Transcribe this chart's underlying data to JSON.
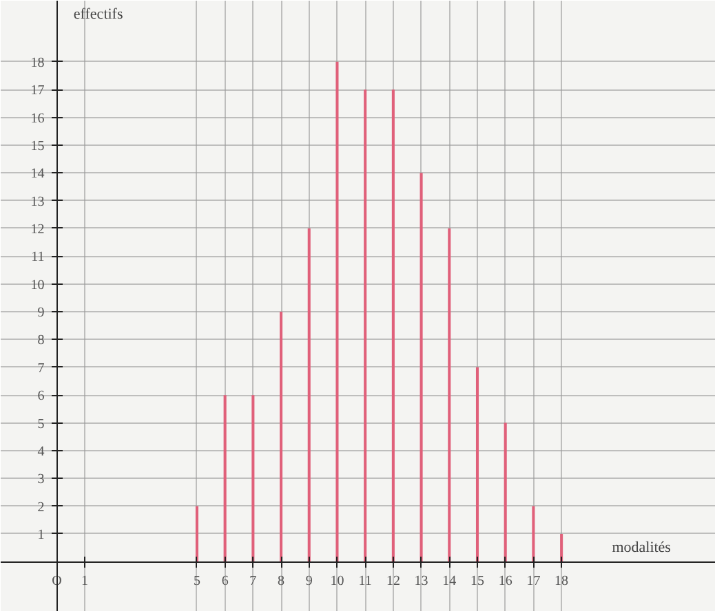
{
  "chart_data": {
    "type": "bar",
    "xlabel": "modalités",
    "ylabel": "effectifs",
    "x": [
      5,
      6,
      7,
      8,
      9,
      10,
      11,
      12,
      13,
      14,
      15,
      16,
      17,
      18
    ],
    "values": [
      2,
      6,
      6,
      9,
      12,
      18,
      17,
      17,
      14,
      12,
      7,
      5,
      2,
      1
    ],
    "color": "#e0607a",
    "xlim": [
      -2,
      23.5
    ],
    "ylim": [
      -1.8,
      20.2
    ],
    "xticks": [
      {
        "value": 0,
        "label": "O"
      },
      1,
      5,
      6,
      7,
      8,
      9,
      10,
      11,
      12,
      13,
      14,
      15,
      16,
      17,
      18
    ],
    "yticks": [
      1,
      2,
      3,
      4,
      5,
      6,
      7,
      8,
      9,
      10,
      11,
      12,
      13,
      14,
      15,
      16,
      17,
      18
    ],
    "grid": true
  }
}
